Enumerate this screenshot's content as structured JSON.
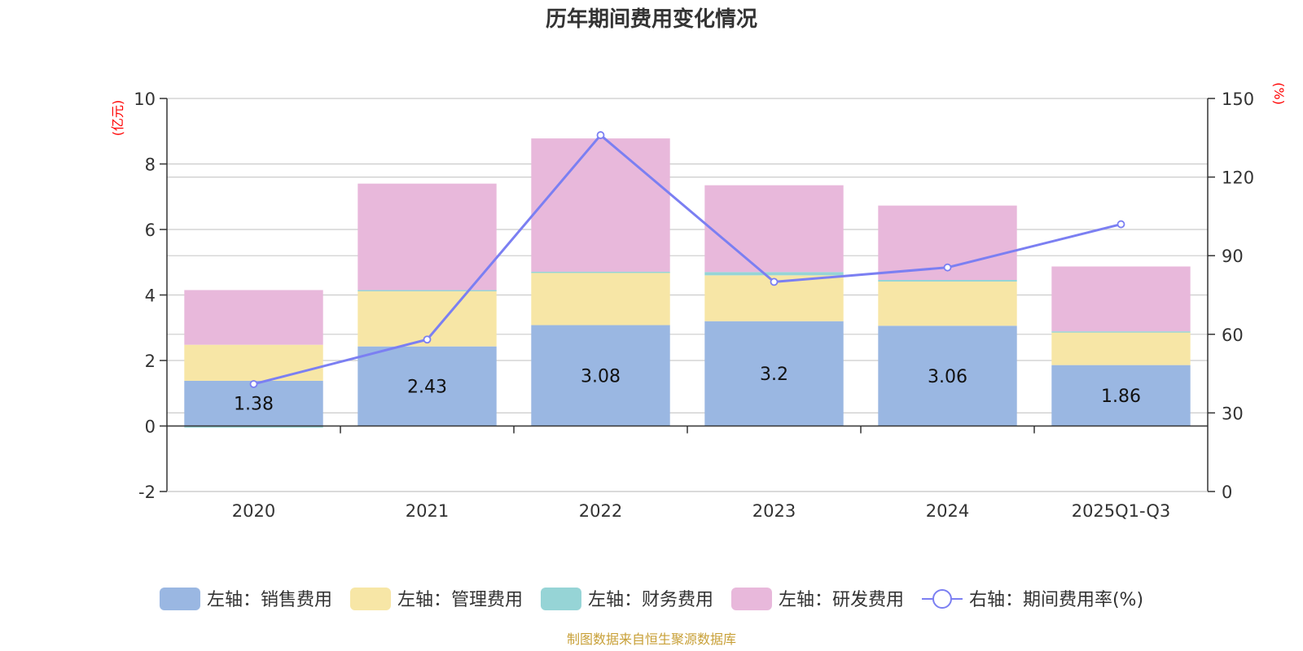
{
  "chart_data": {
    "type": "bar",
    "stacked": true,
    "title": "历年期间费用变化情况",
    "categories": [
      "2020",
      "2021",
      "2022",
      "2023",
      "2024",
      "2025Q1-Q3"
    ],
    "left_axis": {
      "unit": "(亿元)",
      "min": -2,
      "max": 10,
      "ticks": [
        -2,
        0,
        2,
        4,
        6,
        8,
        10
      ]
    },
    "right_axis": {
      "unit": "(%)",
      "min": 0,
      "max": 150,
      "ticks": [
        0,
        30,
        60,
        90,
        120,
        150
      ]
    },
    "series": [
      {
        "name": "左轴：销售费用",
        "axis": "left",
        "type": "bar",
        "color": "#9ab7e2",
        "values": [
          1.38,
          2.43,
          3.08,
          3.2,
          3.06,
          1.86
        ],
        "labels": [
          "1.38",
          "2.43",
          "3.08",
          "3.2",
          "3.06",
          "1.86"
        ]
      },
      {
        "name": "左轴：管理费用",
        "axis": "left",
        "type": "bar",
        "color": "#f7e6a6",
        "values": [
          1.1,
          1.7,
          1.6,
          1.4,
          1.35,
          1.0
        ]
      },
      {
        "name": "左轴：财务费用",
        "axis": "left",
        "type": "bar",
        "color": "#96d4d6",
        "values": [
          -0.05,
          0.02,
          0.03,
          0.1,
          0.05,
          0.03
        ]
      },
      {
        "name": "左轴：研发费用",
        "axis": "left",
        "type": "bar",
        "color": "#e8b8db",
        "values": [
          1.67,
          3.25,
          4.07,
          2.65,
          2.27,
          1.98
        ]
      },
      {
        "name": "右轴：期间费用率(%)",
        "axis": "right",
        "type": "line",
        "color": "#7b7ff2",
        "values": [
          41,
          58,
          136,
          80,
          85.5,
          102
        ]
      }
    ],
    "grid": true,
    "legend_position": "bottom"
  },
  "source_text": "制图数据来自恒生聚源数据库"
}
